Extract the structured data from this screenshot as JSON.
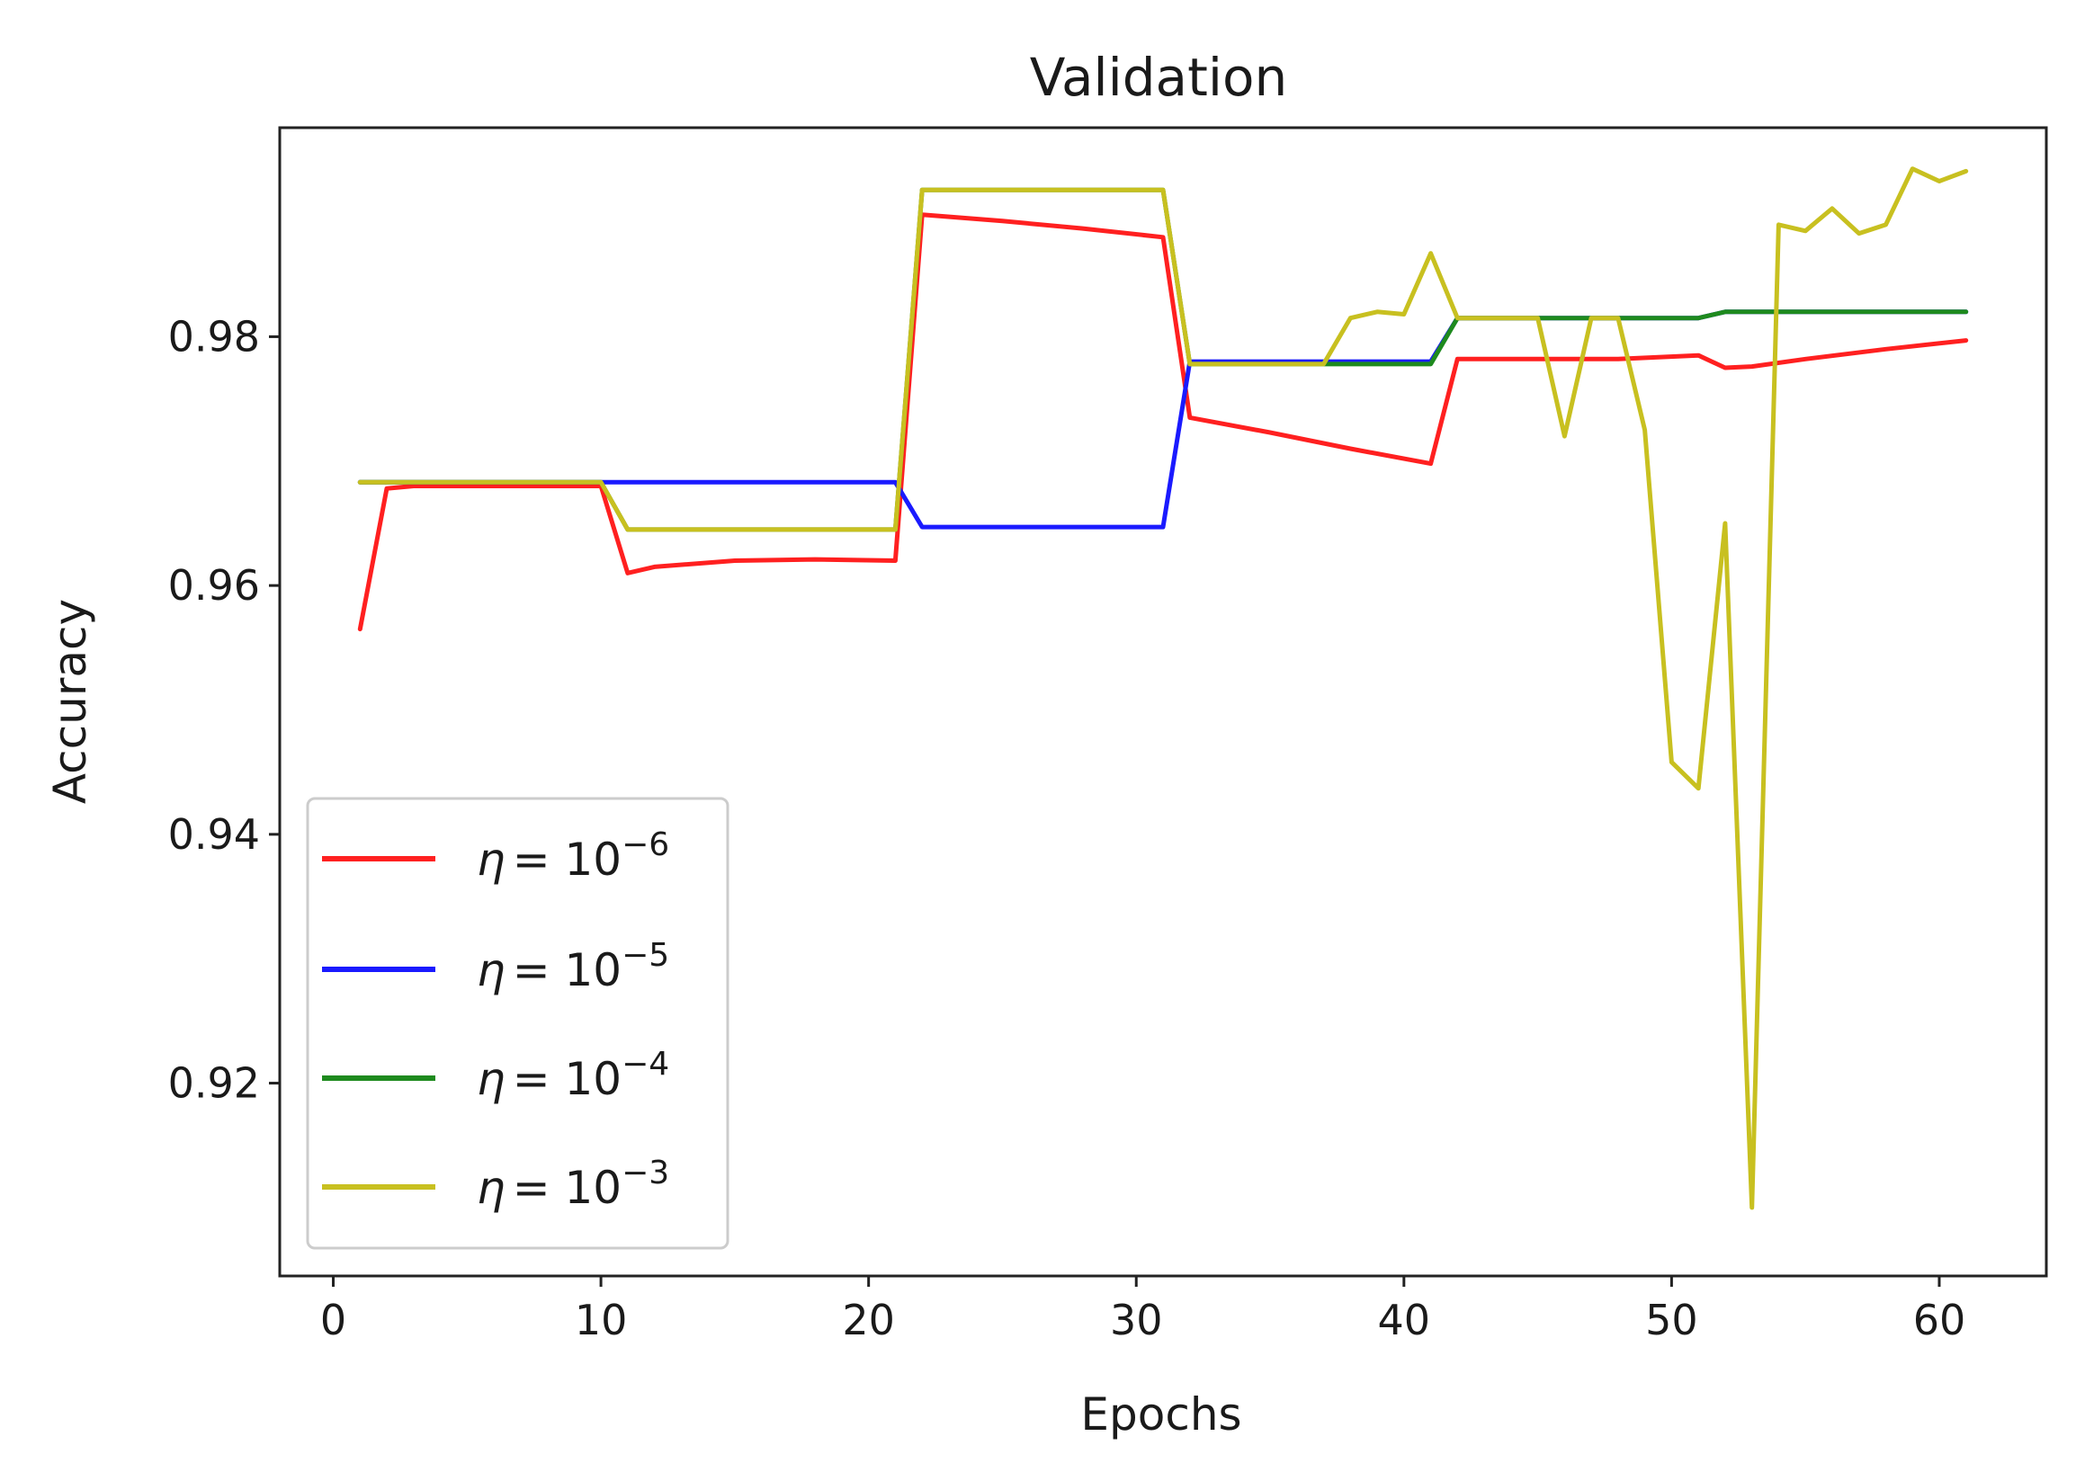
{
  "chart_data": {
    "type": "line",
    "title": "Validation",
    "xlabel": "Epochs",
    "ylabel": "Accuracy",
    "xlim": [
      -2,
      64
    ],
    "ylim": [
      0.9045,
      0.9968
    ],
    "xticks": [
      0,
      10,
      20,
      30,
      40,
      50,
      60
    ],
    "yticks": [
      0.92,
      0.94,
      0.96,
      0.98
    ],
    "xtick_labels": [
      "0",
      "10",
      "20",
      "30",
      "40",
      "50",
      "60"
    ],
    "ytick_labels": [
      "0.92",
      "0.94",
      "0.96",
      "0.98"
    ],
    "grid": false,
    "legend_position": "lower-left",
    "series": [
      {
        "name": "η = 10⁻⁶",
        "legend_base": "10",
        "legend_exp": "−6",
        "color": "#ff2020",
        "x": [
          1,
          2,
          3,
          10,
          11,
          12,
          15,
          18,
          21,
          22,
          25,
          28,
          31,
          32,
          35,
          38,
          41,
          42,
          45,
          48,
          51,
          52,
          53,
          55,
          58,
          61
        ],
        "y": [
          0.9565,
          0.9678,
          0.968,
          0.968,
          0.961,
          0.9615,
          0.962,
          0.9621,
          0.962,
          0.9898,
          0.9893,
          0.9887,
          0.988,
          0.9735,
          0.9723,
          0.971,
          0.9698,
          0.9782,
          0.9782,
          0.9782,
          0.9785,
          0.9775,
          0.9776,
          0.9782,
          0.979,
          0.9797
        ]
      },
      {
        "name": "η = 10⁻⁵",
        "legend_base": "10",
        "legend_exp": "−5",
        "color": "#1a1aff",
        "x": [
          1,
          10,
          15,
          21,
          22,
          26,
          31,
          32,
          37,
          41,
          42,
          45,
          48,
          51,
          52,
          55,
          58,
          61
        ],
        "y": [
          0.9683,
          0.9683,
          0.9683,
          0.9683,
          0.9647,
          0.9647,
          0.9647,
          0.978,
          0.978,
          0.978,
          0.9815,
          0.9815,
          0.9815,
          0.9815,
          0.982,
          0.982,
          0.982,
          0.982
        ]
      },
      {
        "name": "η = 10⁻⁴",
        "legend_base": "10",
        "legend_exp": "−4",
        "color": "#1e8a1e",
        "x": [
          1,
          10,
          11,
          15,
          21,
          22,
          26,
          31,
          32,
          37,
          41,
          42,
          45,
          48,
          51,
          52,
          55,
          58,
          61
        ],
        "y": [
          0.9683,
          0.9683,
          0.9645,
          0.9645,
          0.9645,
          0.9918,
          0.9918,
          0.9918,
          0.9778,
          0.9778,
          0.9778,
          0.9815,
          0.9815,
          0.9815,
          0.9815,
          0.982,
          0.982,
          0.982,
          0.982
        ]
      },
      {
        "name": "η = 10⁻³",
        "legend_base": "10",
        "legend_exp": "−3",
        "color": "#c8c020",
        "x": [
          1,
          10,
          11,
          15,
          21,
          22,
          26,
          31,
          32,
          37,
          38,
          39,
          40,
          41,
          42,
          45,
          46,
          47,
          48,
          49,
          50,
          51,
          52,
          53,
          54,
          55,
          56,
          57,
          58,
          59,
          60,
          61
        ],
        "y": [
          0.9683,
          0.9683,
          0.9645,
          0.9645,
          0.9645,
          0.9918,
          0.9918,
          0.9918,
          0.9778,
          0.9778,
          0.9815,
          0.982,
          0.9818,
          0.9867,
          0.9815,
          0.9815,
          0.972,
          0.9815,
          0.9815,
          0.9725,
          0.9458,
          0.9437,
          0.965,
          0.91,
          0.989,
          0.9885,
          0.9903,
          0.9883,
          0.989,
          0.9935,
          0.9925,
          0.9933
        ]
      }
    ]
  }
}
